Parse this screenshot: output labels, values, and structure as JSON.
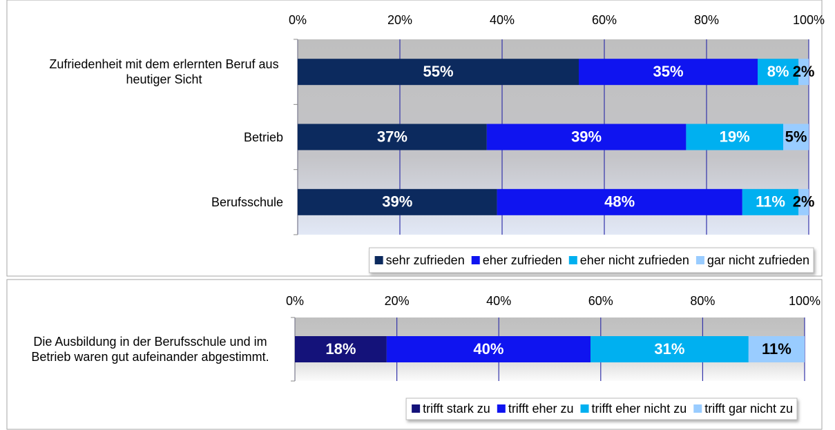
{
  "chart_data": [
    {
      "type": "stacked-bar-horizontal",
      "categories": [
        "Zufriedenheit mit dem erlernten Beruf aus heutiger Sicht",
        "Betrieb",
        "Berufsschule"
      ],
      "series": [
        {
          "name": "sehr zufrieden",
          "color": "#0c2a5e",
          "label_color": "#ffffff",
          "values": [
            55,
            37,
            39
          ],
          "value_labels": [
            "55%",
            "37%",
            "39%"
          ]
        },
        {
          "name": "eher zufrieden",
          "color": "#0f14f0",
          "label_color": "#ffffff",
          "values": [
            35,
            39,
            48
          ],
          "value_labels": [
            "35%",
            "39%",
            "48%"
          ]
        },
        {
          "name": "eher nicht zufrieden",
          "color": "#00b0f0",
          "label_color": "#ffffff",
          "values": [
            8,
            19,
            11
          ],
          "value_labels": [
            "8%",
            "19%",
            "11%"
          ]
        },
        {
          "name": "gar nicht zufrieden",
          "color": "#99ccff",
          "label_color": "#000000",
          "values": [
            2,
            5,
            2
          ],
          "value_labels": [
            "2%",
            "5%",
            "2%"
          ]
        }
      ],
      "xlim": [
        0,
        100
      ],
      "xticks": [
        {
          "value": 0,
          "label": "0%"
        },
        {
          "value": 20,
          "label": "20%"
        },
        {
          "value": 40,
          "label": "40%"
        },
        {
          "value": 60,
          "label": "60%"
        },
        {
          "value": 80,
          "label": "80%"
        },
        {
          "value": 100,
          "label": "100%"
        }
      ],
      "grid": true,
      "legend": "bottom"
    },
    {
      "type": "stacked-bar-horizontal",
      "categories": [
        "Die Ausbildung in der Berufsschule und im Betrieb waren gut aufeinander abgestimmt."
      ],
      "series": [
        {
          "name": "trifft stark zu",
          "color": "#14127a",
          "label_color": "#ffffff",
          "values": [
            18
          ],
          "value_labels": [
            "18%"
          ]
        },
        {
          "name": "trifft eher zu",
          "color": "#0f14f0",
          "label_color": "#ffffff",
          "values": [
            40
          ],
          "value_labels": [
            "40%"
          ]
        },
        {
          "name": "trifft eher nicht zu",
          "color": "#00b0f0",
          "label_color": "#ffffff",
          "values": [
            31
          ],
          "value_labels": [
            "31%"
          ]
        },
        {
          "name": "trifft gar nicht zu",
          "color": "#99ccff",
          "label_color": "#000000",
          "values": [
            11
          ],
          "value_labels": [
            "11%"
          ]
        }
      ],
      "xlim": [
        0,
        100
      ],
      "xticks": [
        {
          "value": 0,
          "label": "0%"
        },
        {
          "value": 20,
          "label": "20%"
        },
        {
          "value": 40,
          "label": "40%"
        },
        {
          "value": 60,
          "label": "60%"
        },
        {
          "value": 80,
          "label": "80%"
        },
        {
          "value": 100,
          "label": "100%"
        }
      ],
      "grid": true,
      "legend": "bottom"
    }
  ]
}
